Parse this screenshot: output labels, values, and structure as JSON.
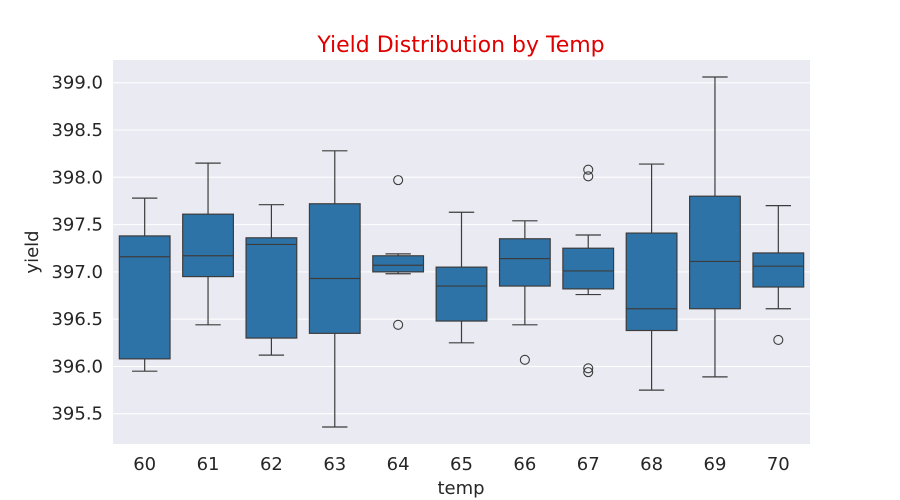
{
  "chart_data": {
    "type": "boxplot",
    "title": "Yield Distribution by Temp",
    "xlabel": "temp",
    "ylabel": "yield",
    "ylim": [
      395.18,
      399.24
    ],
    "yticks": [
      395.5,
      396.0,
      396.5,
      397.0,
      397.5,
      398.0,
      398.5,
      399.0
    ],
    "ytick_labels": [
      "395.5",
      "396.0",
      "396.5",
      "397.0",
      "397.5",
      "398.0",
      "398.5",
      "399.0"
    ],
    "grid": true,
    "colors": {
      "box_fill": "#2e73a8",
      "line": "#3c3c3c",
      "plot_bg": "#eaeaf2",
      "grid": "#ffffff",
      "title": "#e00000",
      "text": "#262626"
    },
    "categories": [
      "60",
      "61",
      "62",
      "63",
      "64",
      "65",
      "66",
      "67",
      "68",
      "69",
      "70"
    ],
    "boxes": [
      {
        "category": "60",
        "whislo": 395.95,
        "q1": 396.08,
        "med": 397.16,
        "q3": 397.38,
        "whishi": 397.78,
        "fliers": []
      },
      {
        "category": "61",
        "whislo": 396.44,
        "q1": 396.95,
        "med": 397.17,
        "q3": 397.61,
        "whishi": 398.15,
        "fliers": []
      },
      {
        "category": "62",
        "whislo": 396.12,
        "q1": 396.3,
        "med": 397.29,
        "q3": 397.36,
        "whishi": 397.71,
        "fliers": []
      },
      {
        "category": "63",
        "whislo": 395.36,
        "q1": 396.35,
        "med": 396.93,
        "q3": 397.72,
        "whishi": 398.28,
        "fliers": []
      },
      {
        "category": "64",
        "whislo": 396.98,
        "q1": 397.0,
        "med": 397.07,
        "q3": 397.17,
        "whishi": 397.19,
        "fliers": [
          396.44,
          397.97
        ]
      },
      {
        "category": "65",
        "whislo": 396.25,
        "q1": 396.48,
        "med": 396.85,
        "q3": 397.05,
        "whishi": 397.63,
        "fliers": []
      },
      {
        "category": "66",
        "whislo": 396.44,
        "q1": 396.85,
        "med": 397.14,
        "q3": 397.35,
        "whishi": 397.54,
        "fliers": [
          396.07
        ]
      },
      {
        "category": "67",
        "whislo": 396.76,
        "q1": 396.82,
        "med": 397.01,
        "q3": 397.25,
        "whishi": 397.39,
        "fliers": [
          395.94,
          395.98,
          398.01,
          398.08
        ]
      },
      {
        "category": "68",
        "whislo": 395.75,
        "q1": 396.38,
        "med": 396.61,
        "q3": 397.41,
        "whishi": 398.14,
        "fliers": []
      },
      {
        "category": "69",
        "whislo": 395.89,
        "q1": 396.61,
        "med": 397.11,
        "q3": 397.8,
        "whishi": 399.06,
        "fliers": []
      },
      {
        "category": "70",
        "whislo": 396.61,
        "q1": 396.84,
        "med": 397.06,
        "q3": 397.2,
        "whishi": 397.7,
        "fliers": [
          396.28
        ]
      }
    ]
  }
}
